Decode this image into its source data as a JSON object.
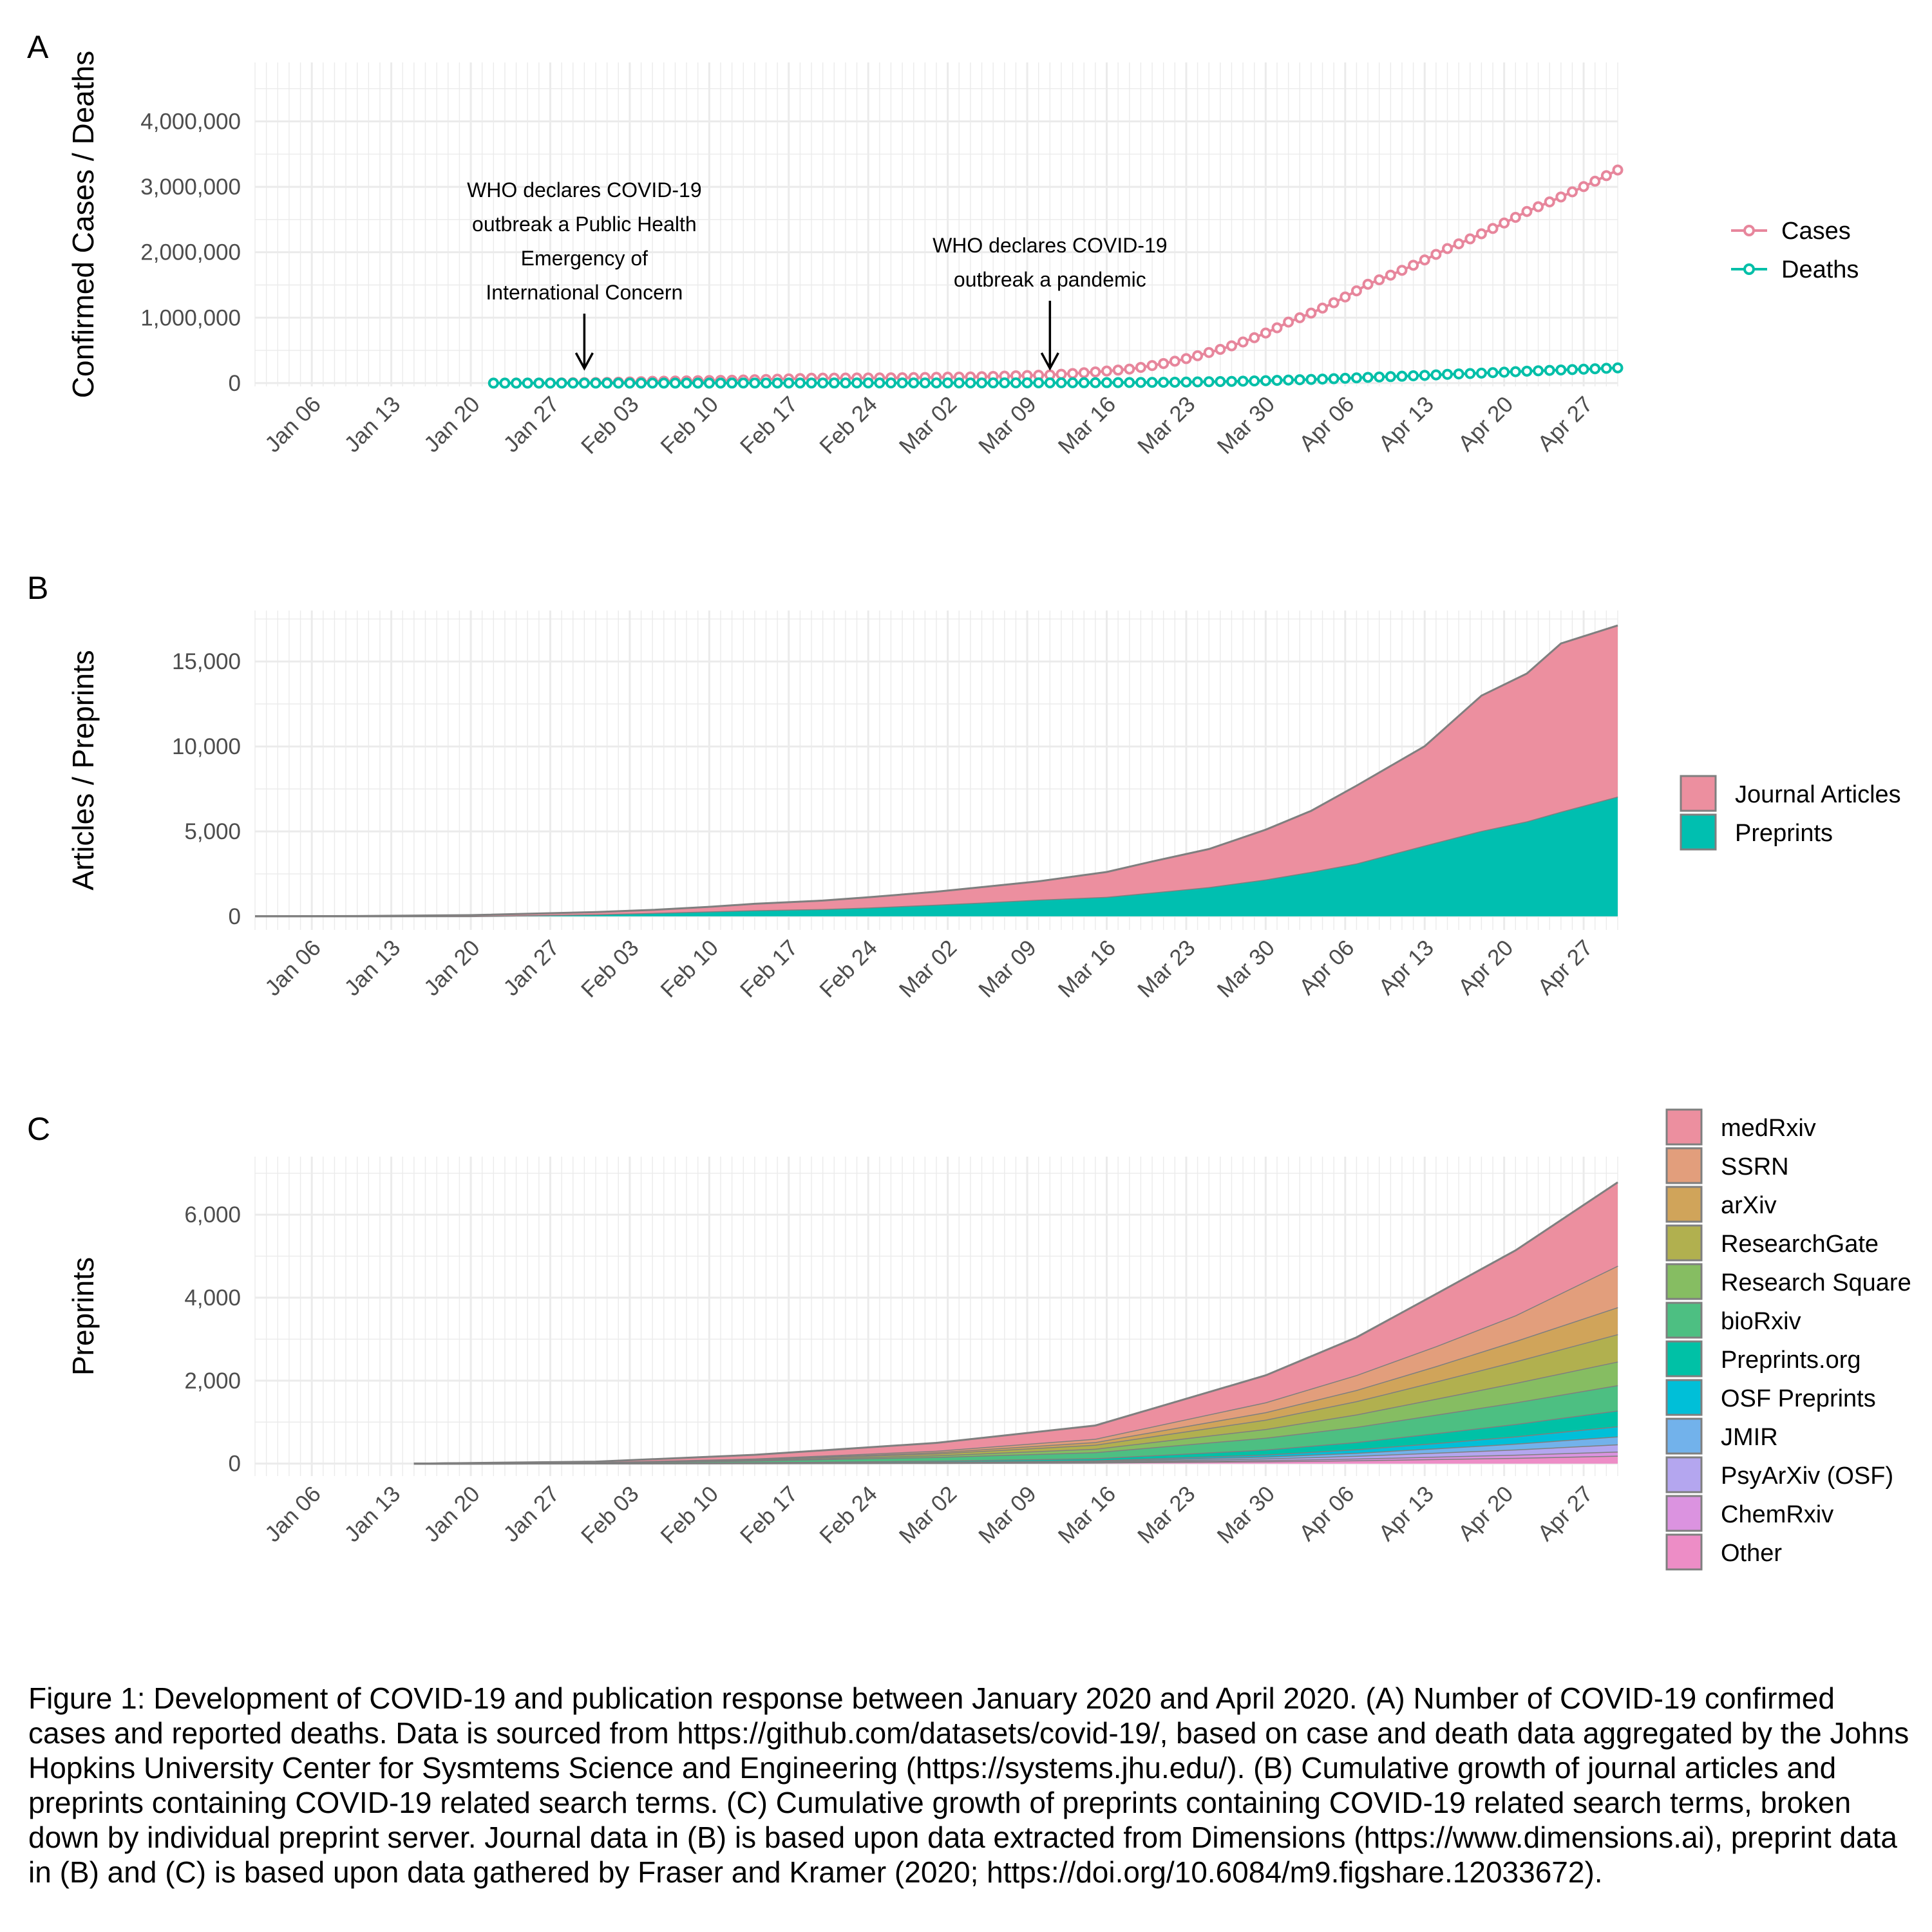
{
  "panels": {
    "a": {
      "letter": "A"
    },
    "b": {
      "letter": "B"
    },
    "c": {
      "letter": "C"
    }
  },
  "caption": "Figure 1: Development of COVID-19 and publication response between January 2020 and April 2020. (A) Number of COVID-19 confirmed cases and reported deaths. Data is sourced from https://github.com/datasets/covid-19/, based on case and death data aggregated by the Johns Hopkins University Center for Sysmtems Science and Engineering (https://systems.jhu.edu/). (B) Cumulative growth of journal articles and preprints containing COVID-19 related search terms. (C) Cumulative growth of preprints containing COVID-19 related search terms, broken down by individual preprint server. Journal data in (B) is based upon data extracted from Dimensions (https://www.dimensions.ai), preprint data in (B) and (C) is based upon data gathered by Fraser and Kramer (2020; https://doi.org/10.6084/m9.figshare.12033672).",
  "x_ticks": [
    "Jan 06",
    "Jan 13",
    "Jan 20",
    "Jan 27",
    "Feb 03",
    "Feb 10",
    "Feb 17",
    "Feb 24",
    "Mar 02",
    "Mar 09",
    "Mar 16",
    "Mar 23",
    "Mar 30",
    "Apr 06",
    "Apr 13",
    "Apr 20",
    "Apr 27"
  ],
  "x_tick_dates": [
    "2020-01-06",
    "2020-01-13",
    "2020-01-20",
    "2020-01-27",
    "2020-02-03",
    "2020-02-10",
    "2020-02-17",
    "2020-02-24",
    "2020-03-02",
    "2020-03-09",
    "2020-03-16",
    "2020-03-23",
    "2020-03-30",
    "2020-04-06",
    "2020-04-13",
    "2020-04-20",
    "2020-04-27"
  ],
  "colors": {
    "cases": "#e7869c",
    "deaths": "#00bfa8",
    "journal_articles": "#ec8f9f",
    "preprints": "#00bfb0",
    "grid": "#ebebeb",
    "area_outline": "#7f7f7f"
  },
  "chart_data": [
    {
      "id": "A",
      "type": "line",
      "title": "",
      "xlabel": "",
      "ylabel": "Confirmed Cases / Deaths",
      "xlim": [
        "2020-01-01",
        "2020-04-30"
      ],
      "ylim": [
        -50000,
        4900000
      ],
      "y_ticks": [
        0,
        1000000,
        2000000,
        3000000,
        4000000
      ],
      "y_tick_labels": [
        "0",
        "1,000,000",
        "2,000,000",
        "3,000,000",
        "4,000,000"
      ],
      "grid": true,
      "legend": "right",
      "marker": "open-circle",
      "series": [
        {
          "name": "Cases",
          "color": "#e7869c",
          "points": [
            [
              "2020-01-22",
              555
            ],
            [
              "2020-01-29",
              6165
            ],
            [
              "2020-02-05",
              28276
            ],
            [
              "2020-02-12",
              45221
            ],
            [
              "2020-02-19",
              75639
            ],
            [
              "2020-02-26",
              81397
            ],
            [
              "2020-03-04",
              95120
            ],
            [
              "2020-03-11",
              126214
            ],
            [
              "2020-03-18",
              214910
            ],
            [
              "2020-03-25",
              467594
            ],
            [
              "2020-04-01",
              932605
            ],
            [
              "2020-04-08",
              1511104
            ],
            [
              "2020-04-15",
              2056055
            ],
            [
              "2020-04-22",
              2623415
            ],
            [
              "2020-04-30",
              3256846
            ]
          ]
        },
        {
          "name": "Deaths",
          "color": "#00bfa8",
          "points": [
            [
              "2020-01-22",
              17
            ],
            [
              "2020-01-29",
              133
            ],
            [
              "2020-02-05",
              565
            ],
            [
              "2020-02-12",
              1118
            ],
            [
              "2020-02-19",
              2122
            ],
            [
              "2020-02-26",
              2770
            ],
            [
              "2020-03-04",
              3254
            ],
            [
              "2020-03-11",
              4615
            ],
            [
              "2020-03-18",
              8733
            ],
            [
              "2020-03-25",
              21181
            ],
            [
              "2020-04-01",
              47208
            ],
            [
              "2020-04-08",
              88338
            ],
            [
              "2020-04-15",
              134176
            ],
            [
              "2020-04-22",
              183027
            ],
            [
              "2020-04-30",
              233388
            ]
          ]
        }
      ],
      "annotations": [
        {
          "date": "2020-01-30",
          "lines": [
            "WHO declares COVID-19",
            "outbreak a Public Health",
            "Emergency of",
            "International Concern"
          ]
        },
        {
          "date": "2020-03-11",
          "lines": [
            "WHO declares COVID-19",
            "outbreak a pandemic"
          ]
        }
      ]
    },
    {
      "id": "B",
      "type": "area",
      "stacked": true,
      "title": "",
      "xlabel": "",
      "ylabel": "Articles / Preprints",
      "xlim": [
        "2020-01-01",
        "2020-04-30"
      ],
      "ylim": [
        -800,
        18000
      ],
      "y_ticks": [
        0,
        5000,
        10000,
        15000
      ],
      "y_tick_labels": [
        "0",
        "5,000",
        "10,000",
        "15,000"
      ],
      "grid": true,
      "legend": "right",
      "x": [
        "2020-01-01",
        "2020-01-10",
        "2020-01-20",
        "2020-01-31",
        "2020-02-05",
        "2020-02-10",
        "2020-02-14",
        "2020-02-20",
        "2020-02-24",
        "2020-03-01",
        "2020-03-05",
        "2020-03-10",
        "2020-03-16",
        "2020-03-20",
        "2020-03-25",
        "2020-03-30",
        "2020-04-03",
        "2020-04-07",
        "2020-04-13",
        "2020-04-18",
        "2020-04-22",
        "2020-04-25",
        "2020-04-30"
      ],
      "series": [
        {
          "name": "Preprints",
          "color": "#00bfb0",
          "values": [
            0,
            0,
            10,
            120,
            200,
            290,
            360,
            430,
            520,
            690,
            810,
            980,
            1150,
            1400,
            1720,
            2170,
            2620,
            3110,
            4170,
            5030,
            5590,
            6160,
            7050
          ]
        },
        {
          "name": "Journal Articles",
          "color": "#ec8f9f",
          "values": [
            10,
            20,
            60,
            130,
            180,
            270,
            380,
            500,
            600,
            760,
            910,
            1080,
            1460,
            1830,
            2240,
            2930,
            3590,
            4580,
            5840,
            7960,
            8700,
            9900,
            10070
          ]
        }
      ]
    },
    {
      "id": "C",
      "type": "area",
      "stacked": true,
      "title": "",
      "xlabel": "",
      "ylabel": "Preprints",
      "xlim": [
        "2020-01-01",
        "2020-04-30"
      ],
      "ylim": [
        -300,
        7400
      ],
      "y_ticks": [
        0,
        2000,
        4000,
        6000
      ],
      "y_tick_labels": [
        "0",
        "2,000",
        "4,000",
        "6,000"
      ],
      "grid": true,
      "legend": "right",
      "x": [
        "2020-01-15",
        "2020-01-31",
        "2020-02-14",
        "2020-03-01",
        "2020-03-15",
        "2020-03-30",
        "2020-04-07",
        "2020-04-14",
        "2020-04-21",
        "2020-04-30"
      ],
      "series": [
        {
          "name": "Other",
          "color": "#ed8dc6",
          "values": [
            0,
            3,
            8,
            15,
            25,
            55,
            80,
            110,
            140,
            190
          ]
        },
        {
          "name": "ChemRxiv",
          "color": "#db93e0",
          "values": [
            0,
            1,
            3,
            7,
            12,
            28,
            42,
            58,
            74,
            100
          ]
        },
        {
          "name": "PsyArXiv (OSF)",
          "color": "#b4a6ef",
          "values": [
            0,
            0,
            2,
            5,
            12,
            40,
            65,
            95,
            125,
            175
          ]
        },
        {
          "name": "JMIR",
          "color": "#72b2eb",
          "values": [
            0,
            1,
            3,
            8,
            15,
            45,
            72,
            105,
            140,
            190
          ]
        },
        {
          "name": "OSF Preprints",
          "color": "#00bfd8",
          "values": [
            0,
            1,
            3,
            7,
            15,
            50,
            85,
            125,
            175,
            245
          ]
        },
        {
          "name": "Preprints.org",
          "color": "#00c1a6",
          "values": [
            0,
            5,
            14,
            28,
            50,
            120,
            175,
            240,
            300,
            380
          ]
        },
        {
          "name": "bioRxiv",
          "color": "#4dbf82",
          "values": [
            0,
            12,
            40,
            90,
            145,
            285,
            365,
            445,
            520,
            610
          ]
        },
        {
          "name": "Research Square",
          "color": "#86bd62",
          "values": [
            0,
            0,
            12,
            40,
            85,
            210,
            300,
            385,
            470,
            570
          ]
        },
        {
          "name": "ResearchGate",
          "color": "#b1b04f",
          "values": [
            0,
            4,
            15,
            45,
            95,
            225,
            320,
            415,
            520,
            660
          ]
        },
        {
          "name": "arXiv",
          "color": "#d0a45a",
          "values": [
            0,
            2,
            10,
            30,
            65,
            180,
            270,
            370,
            490,
            650
          ]
        },
        {
          "name": "SSRN",
          "color": "#e29e7c",
          "values": [
            0,
            3,
            12,
            35,
            80,
            240,
            360,
            480,
            620,
            1000
          ]
        },
        {
          "name": "medRxiv",
          "color": "#ec8f9f",
          "values": [
            0,
            15,
            90,
            190,
            320,
            650,
            910,
            1260,
            1565,
            2010
          ]
        }
      ]
    }
  ]
}
